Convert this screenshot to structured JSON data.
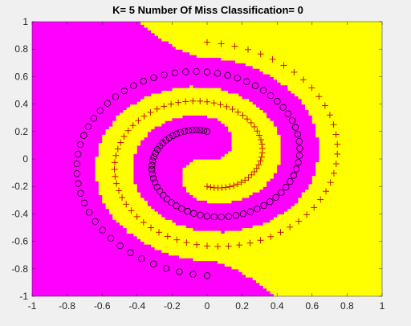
{
  "chart_data": {
    "type": "scatter",
    "title": "K= 5  Number Of Miss Classification= 0",
    "xlim": [
      -1,
      1
    ],
    "ylim": [
      -1,
      1
    ],
    "xticks": [
      "-1",
      "-0.8",
      "-0.6",
      "-0.4",
      "-0.2",
      "0",
      "0.2",
      "0.4",
      "0.6",
      "0.8",
      "1"
    ],
    "yticks": [
      "-1",
      "-0.8",
      "-0.6",
      "-0.4",
      "-0.2",
      "0",
      "0.2",
      "0.4",
      "0.6",
      "0.8",
      "1"
    ],
    "grid": false,
    "background": "decision-regions",
    "region_colors": {
      "class_circle": "#ff00ff",
      "class_plus": "#ffff00"
    },
    "series": [
      {
        "marker": "circle",
        "color": "#000000",
        "spiral": {
          "center": [
            0,
            0
          ],
          "start_radius": 0.2,
          "end_radius": 0.85,
          "start_angle_deg": 90,
          "turns": 1.5,
          "direction": "counterclockwise"
        },
        "count": 100
      },
      {
        "marker": "plus",
        "color": "#c00000",
        "spiral": {
          "center": [
            0,
            0
          ],
          "start_radius": 0.2,
          "end_radius": 0.85,
          "start_angle_deg": 270,
          "turns": 1.5,
          "direction": "counterclockwise"
        },
        "count": 100
      }
    ]
  }
}
